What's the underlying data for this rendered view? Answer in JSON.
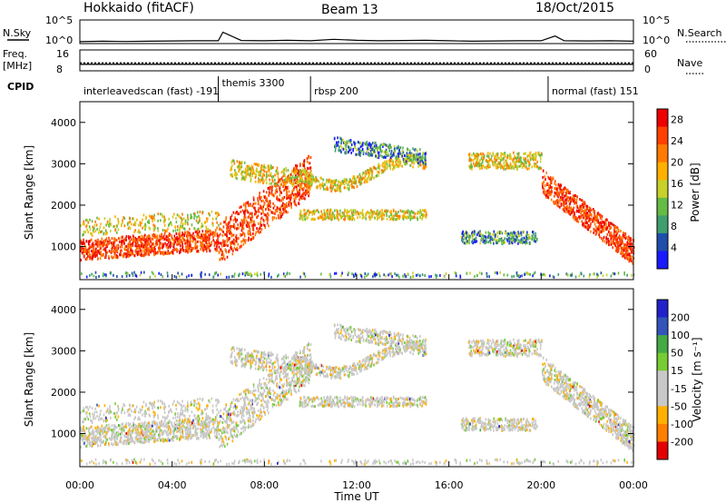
{
  "header": {
    "station": "Hokkaido (fitACF)",
    "beam": "Beam 13",
    "date": "18/Oct/2015"
  },
  "colors": {
    "power_scale": [
      "#1a1aff",
      "#1f4faa",
      "#3f9f6f",
      "#66bb44",
      "#c8d02a",
      "#ffb000",
      "#ff7a00",
      "#ff4000",
      "#ee0000"
    ],
    "velocity_scale": [
      "#e30000",
      "#ff7f00",
      "#ffb000",
      "#c8c8c8",
      "#c8c8c8",
      "#77cc33",
      "#44aa44",
      "#3355bb",
      "#2222cc"
    ],
    "frame": "#000000",
    "background": "#ffffff"
  },
  "chart_data": [
    {
      "type": "line",
      "panel": "noise",
      "left_label": "N.Sky",
      "right_label": "N.Search",
      "ticks_left": [
        "10^5",
        "10^0"
      ],
      "ticks_right": [
        "10^5",
        "10^0"
      ],
      "x_unit": "hours UT",
      "xlim": [
        0,
        24
      ],
      "ylim_log10": [
        0,
        5
      ],
      "x": [
        0,
        1,
        2,
        3,
        4,
        5,
        6,
        6.2,
        7,
        8,
        9,
        10,
        11,
        12,
        13,
        14,
        15,
        16,
        17,
        18,
        19,
        20,
        20.6,
        21,
        22,
        23,
        24
      ],
      "y_log10": [
        0.4,
        0.5,
        0.45,
        0.5,
        0.55,
        0.6,
        0.6,
        2.4,
        0.65,
        0.6,
        0.7,
        0.6,
        0.9,
        0.7,
        0.6,
        0.65,
        0.7,
        0.6,
        0.5,
        0.55,
        0.6,
        0.6,
        1.6,
        0.6,
        0.55,
        0.6,
        0.5
      ]
    },
    {
      "type": "line",
      "panel": "frequency",
      "left_label_top": "Freq.",
      "left_label_unit": "[MHz]",
      "right_label": "Nave",
      "ticks_left": [
        "16",
        "8"
      ],
      "ticks_right": [
        "60",
        "0"
      ],
      "xlim": [
        0,
        24
      ],
      "series": [
        {
          "values_mhz": [
            11,
            11
          ]
        },
        {
          "values_mhz": [
            10.5,
            10.5
          ]
        }
      ]
    },
    {
      "type": "table",
      "panel": "cpid",
      "label": "CPID",
      "segments": [
        {
          "start": 0.0,
          "end": 6.0,
          "text": "interleavedscan (fast) -191"
        },
        {
          "start": 6.0,
          "end": 10.0,
          "text": "themis 3300"
        },
        {
          "start": 10.0,
          "end": 20.3,
          "text": "rbsp 200"
        },
        {
          "start": 20.3,
          "end": 24.0,
          "text": "normal (fast) 151"
        }
      ]
    },
    {
      "type": "heatmap",
      "panel": "power",
      "ylabel": "Slant Range [km]",
      "xlim": [
        0,
        24
      ],
      "ylim": [
        200,
        4500
      ],
      "yticks": [
        1000,
        2000,
        3000,
        4000
      ],
      "colorbar_label": "Power [dB]",
      "colorbar_ticks": [
        4,
        8,
        12,
        16,
        20,
        24,
        28
      ],
      "clim": [
        0,
        30
      ]
    },
    {
      "type": "heatmap",
      "panel": "velocity",
      "ylabel": "Slant Range [km]",
      "xlabel": "Time UT",
      "xlim": [
        0,
        24
      ],
      "ylim": [
        200,
        4500
      ],
      "yticks": [
        1000,
        2000,
        3000,
        4000
      ],
      "xticks": [
        "00:00",
        "04:00",
        "08:00",
        "12:00",
        "16:00",
        "20:00",
        "00:00"
      ],
      "colorbar_label": "Velocity [m s⁻¹]",
      "colorbar_ticks": [
        200,
        100,
        50,
        15,
        -15,
        -50,
        -100,
        -200
      ]
    }
  ]
}
